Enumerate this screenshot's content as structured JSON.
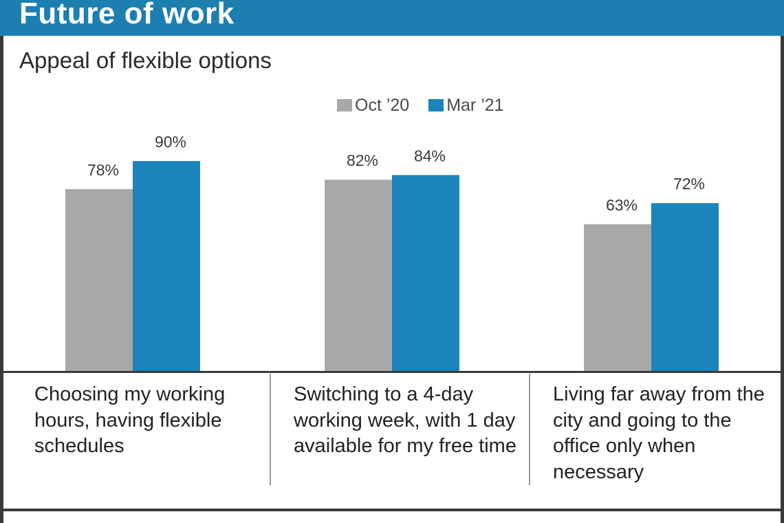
{
  "header": {
    "title": "Future of work"
  },
  "colors": {
    "banner": "#1c7fb0",
    "oct20": "#a8a8aa",
    "mar21": "#1a84bb"
  },
  "chart_data": {
    "type": "bar",
    "title": "Appeal of flexible options",
    "xlabel": "",
    "ylabel": "",
    "ylim": [
      0,
      100
    ],
    "grid": false,
    "legend_position": "top-center",
    "categories": [
      "Choosing my working hours, having flexible schedules",
      "Switching to a 4-day working week, with 1 day available for my free time",
      "Living far away from the city and going to the office only when necessary"
    ],
    "series": [
      {
        "name": "Oct ’20",
        "color": "#a8a8aa",
        "values": [
          78,
          82,
          63
        ],
        "labels": [
          "78%",
          "82%",
          "63%"
        ]
      },
      {
        "name": "Mar ’21",
        "color": "#1a84bb",
        "values": [
          90,
          84,
          72
        ],
        "labels": [
          "90%",
          "84%",
          "72%"
        ]
      }
    ]
  }
}
